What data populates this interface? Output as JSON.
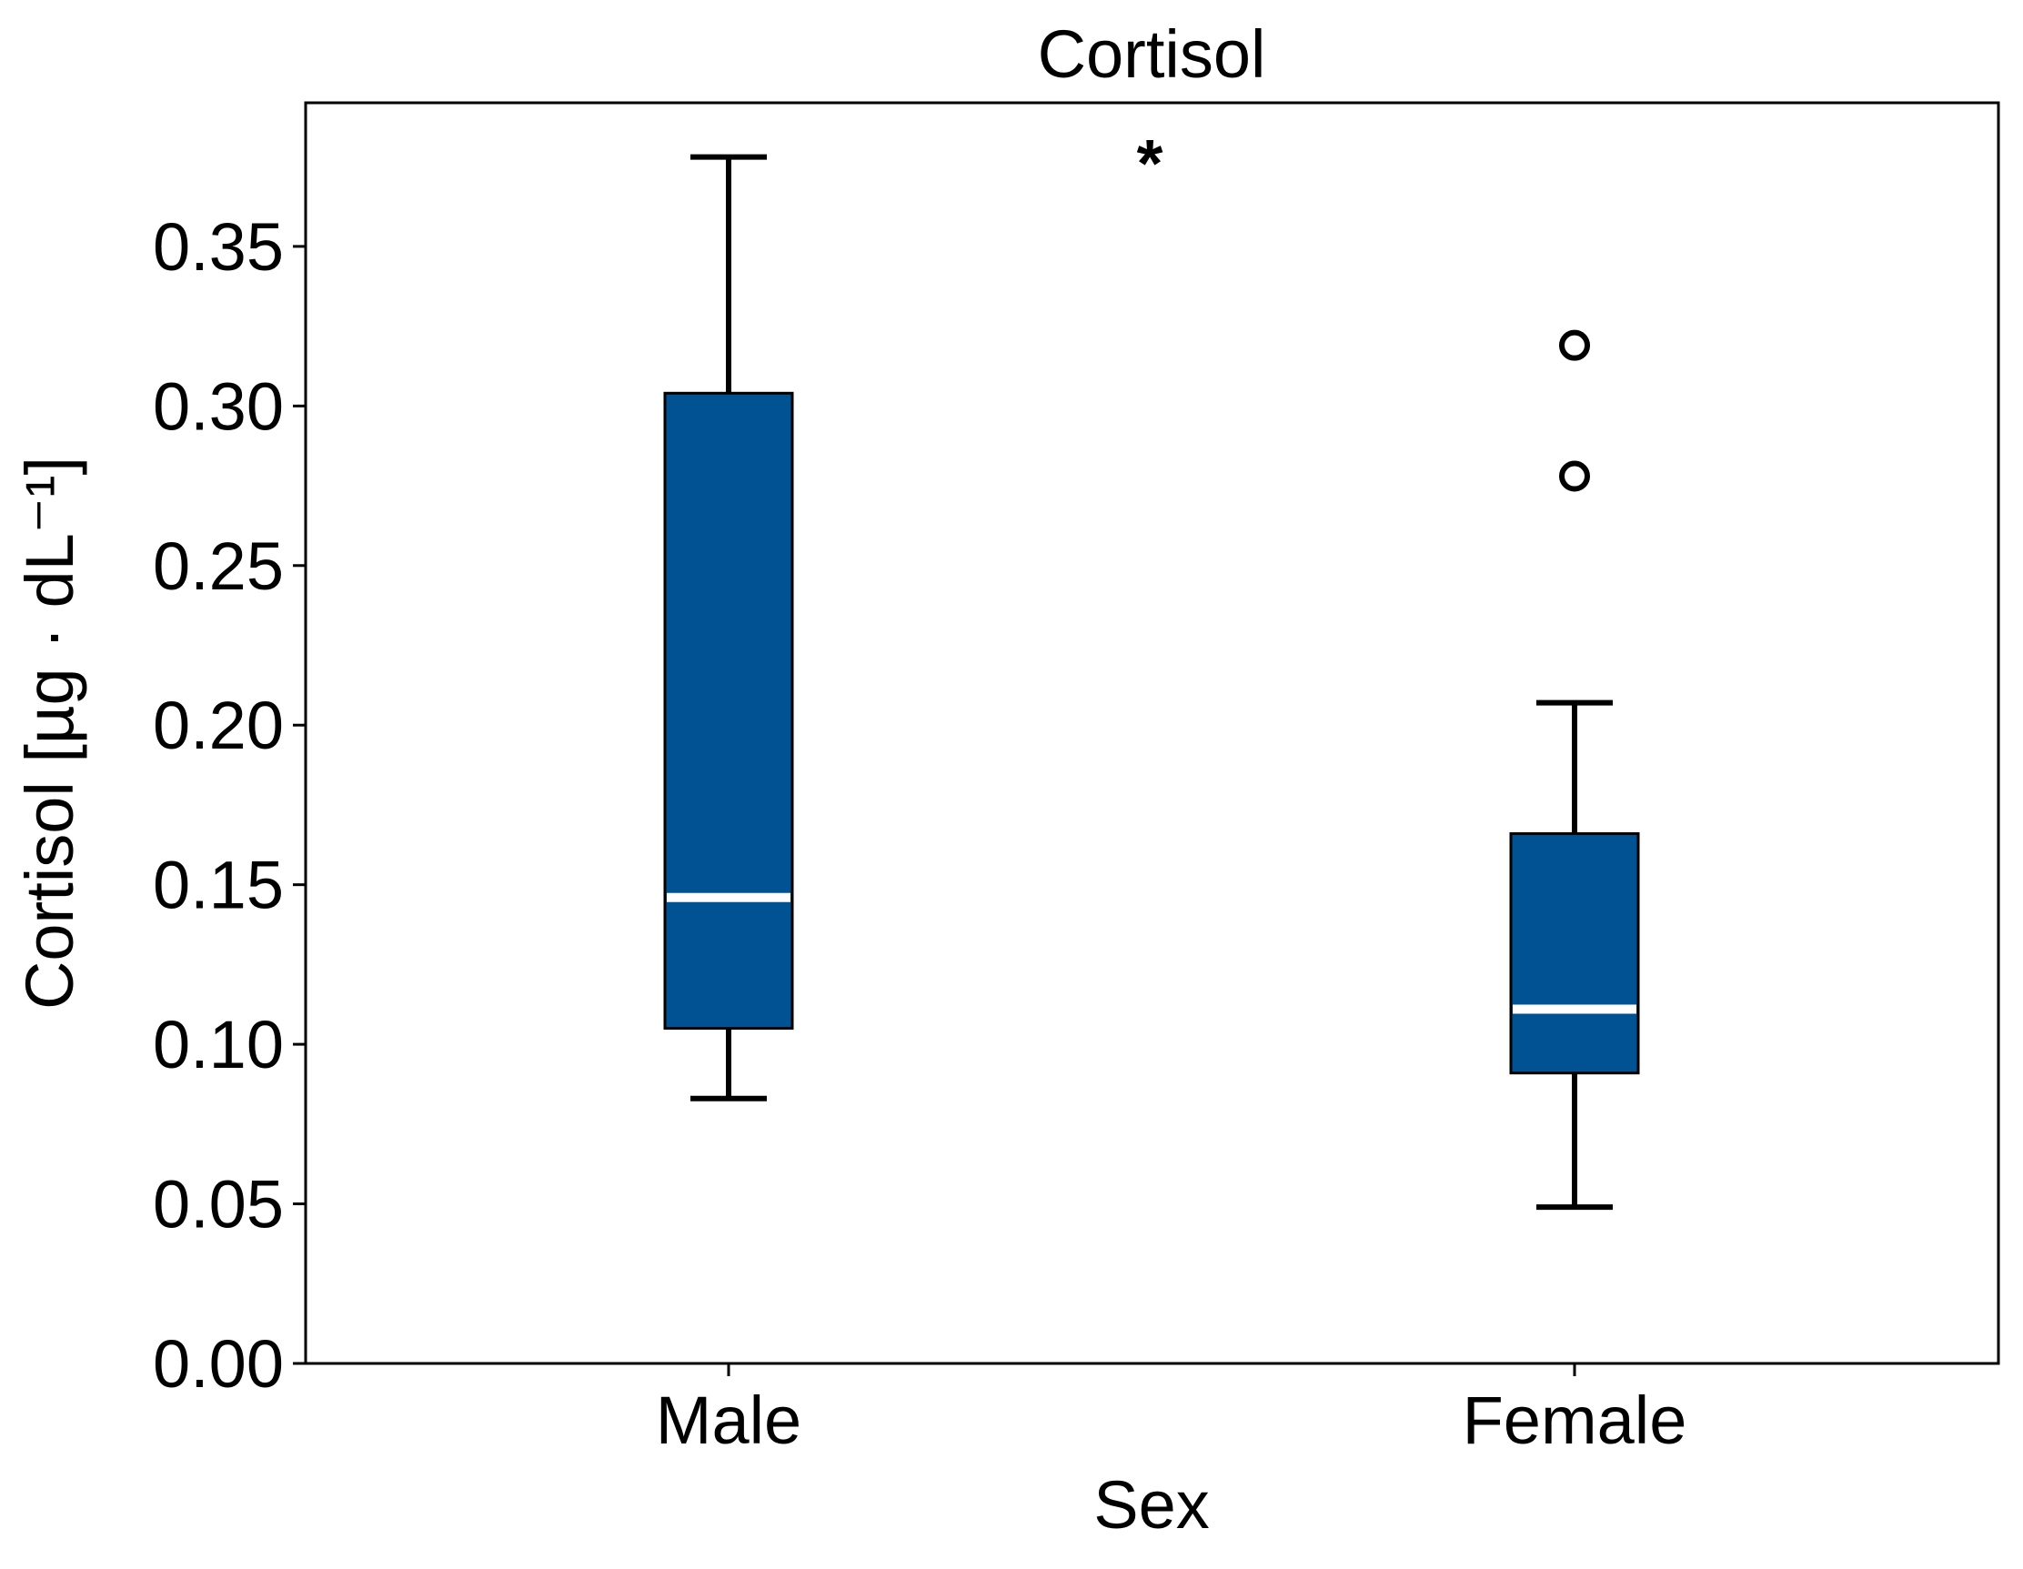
{
  "chart_data": {
    "type": "box",
    "title": "Cortisol",
    "xlabel": "Sex",
    "ylabel": "Cortisol [µg · dL⁻¹]",
    "ylim": [
      0.0,
      0.395
    ],
    "yticks": [
      "0.00",
      "0.05",
      "0.10",
      "0.15",
      "0.20",
      "0.25",
      "0.30",
      "0.35"
    ],
    "categories": [
      "Male",
      "Female"
    ],
    "annotation": "*",
    "box_color": "#005293",
    "median_color": "#ffffff",
    "boxes": [
      {
        "label": "Male",
        "whisker_low": 0.083,
        "q1": 0.105,
        "median": 0.146,
        "q3": 0.304,
        "whisker_high": 0.378,
        "outliers": []
      },
      {
        "label": "Female",
        "whisker_low": 0.049,
        "q1": 0.091,
        "median": 0.111,
        "q3": 0.166,
        "whisker_high": 0.207,
        "outliers": [
          0.319,
          0.278
        ]
      }
    ],
    "grid": false,
    "legend": "none"
  }
}
